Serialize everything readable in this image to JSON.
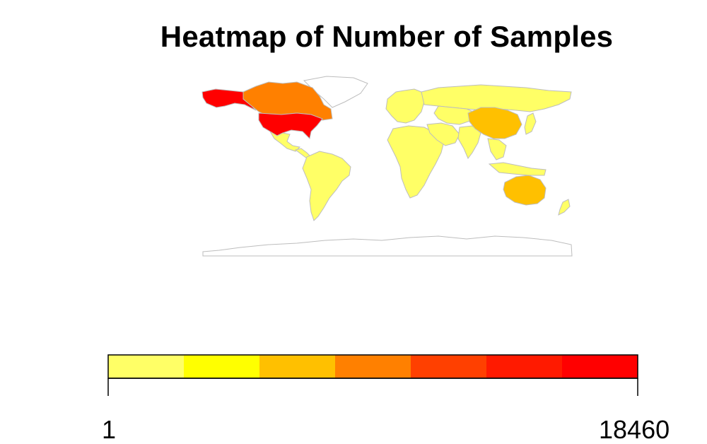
{
  "title": "Heatmap of Number of Samples",
  "map": {
    "type": "choropleth-world",
    "border_color": "#bdbdbd",
    "no_data_color": "#ffffff",
    "regions": [
      {
        "name": "Alaska",
        "color": "#ff0000"
      },
      {
        "name": "Canada",
        "color": "#ff8000"
      },
      {
        "name": "Greenland",
        "color": "#ffffff"
      },
      {
        "name": "United States",
        "color": "#ff0000"
      },
      {
        "name": "Mexico",
        "color": "#ffff66"
      },
      {
        "name": "Central America",
        "color": "#ffff66"
      },
      {
        "name": "South America",
        "color": "#ffff66"
      },
      {
        "name": "Europe",
        "color": "#ffff66"
      },
      {
        "name": "Russia",
        "color": "#ffff66"
      },
      {
        "name": "Africa",
        "color": "#ffff66"
      },
      {
        "name": "Middle East",
        "color": "#ffff66"
      },
      {
        "name": "Central Asia",
        "color": "#ffff66"
      },
      {
        "name": "India",
        "color": "#ffff66"
      },
      {
        "name": "China",
        "color": "#ffc000"
      },
      {
        "name": "Southeast Asia",
        "color": "#ffff66"
      },
      {
        "name": "Japan",
        "color": "#ffff66"
      },
      {
        "name": "Indonesia",
        "color": "#ffff66"
      },
      {
        "name": "Australia",
        "color": "#ffc000"
      },
      {
        "name": "New Zealand",
        "color": "#ffff66"
      },
      {
        "name": "Antarctica",
        "color": "#ffffff"
      }
    ]
  },
  "legend": {
    "min_label": "1",
    "max_label": "18460",
    "colors": [
      "#ffff66",
      "#ffff00",
      "#ffc000",
      "#ff8000",
      "#ff4000",
      "#ff1a00",
      "#ff0000"
    ]
  }
}
